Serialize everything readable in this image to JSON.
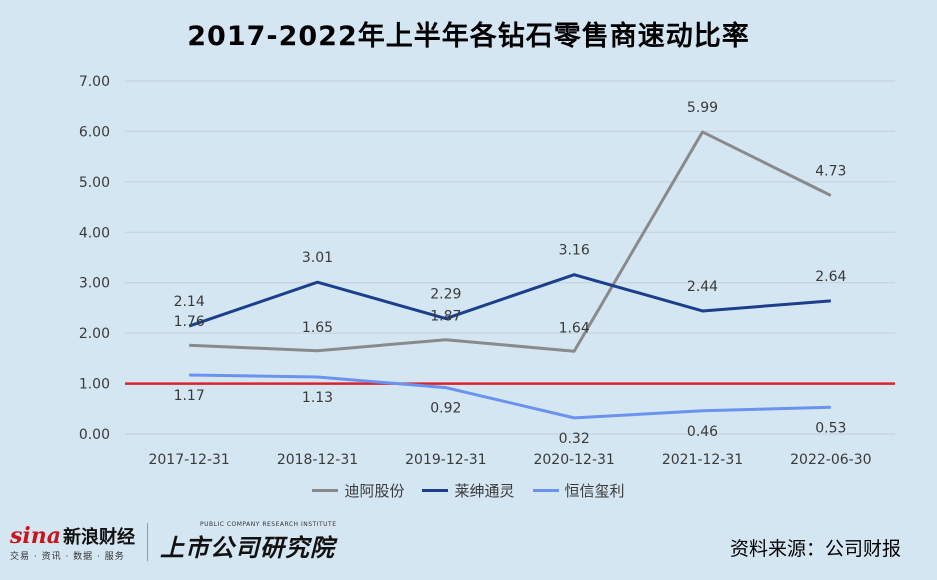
{
  "page": {
    "background": "#d5e6f3"
  },
  "footer": {
    "sina_brand": "sina",
    "sina_cn": "新浪财经",
    "sina_sub": "交易 · 资讯 · 数据 · 服务",
    "research_en": "PUBLIC COMPANY RESEARCH INSTITUTE",
    "research_cn": "上市公司研究院",
    "source": "资料来源：公司财报"
  },
  "chart_data": {
    "type": "line",
    "title": "2017-2022年上半年各钻石零售商速动比率",
    "categories": [
      "2017-12-31",
      "2018-12-31",
      "2019-12-31",
      "2020-12-31",
      "2021-12-31",
      "2022-06-30"
    ],
    "ylim": [
      0,
      7
    ],
    "yticks": [
      "0.00",
      "1.00",
      "2.00",
      "3.00",
      "4.00",
      "5.00",
      "6.00",
      "7.00"
    ],
    "grid": true,
    "legend_position": "bottom",
    "reference_line": {
      "value": 1.0,
      "color": "#e0202a"
    },
    "series": [
      {
        "name": "迪阿股份",
        "color": "#8a8a8a",
        "values": [
          1.76,
          1.65,
          1.87,
          1.64,
          5.99,
          4.73
        ],
        "labels": [
          "1.76",
          "1.65",
          "1.87",
          "1.64",
          "5.99",
          "4.73"
        ]
      },
      {
        "name": "莱绅通灵",
        "color": "#1b3f8b",
        "values": [
          2.14,
          3.01,
          2.29,
          3.16,
          2.44,
          2.64
        ],
        "labels": [
          "2.14",
          "3.01",
          "2.29",
          "3.16",
          "2.44",
          "2.64"
        ]
      },
      {
        "name": "恒信玺利",
        "color": "#6a93f0",
        "values": [
          1.17,
          1.13,
          0.92,
          0.32,
          0.46,
          0.53
        ],
        "labels": [
          "1.17",
          "1.13",
          "0.92",
          "0.32",
          "0.46",
          "0.53"
        ]
      }
    ]
  }
}
